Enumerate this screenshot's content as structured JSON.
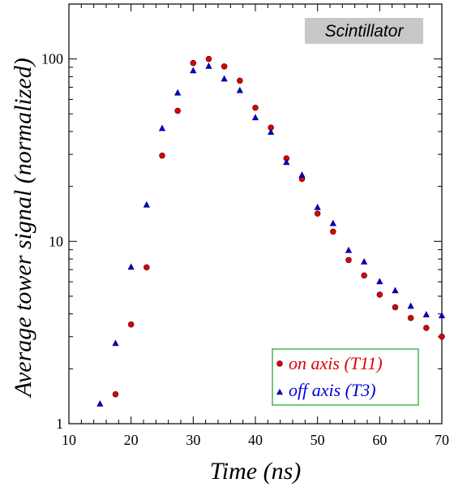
{
  "chart_data": {
    "type": "scatter",
    "title": "",
    "annotation": "Scintillator",
    "xlabel": "Time (ns)",
    "ylabel": "Average tower signal (normalized)",
    "xlim": [
      10,
      70
    ],
    "ylim": [
      1,
      200
    ],
    "yscale": "log",
    "xticks": [
      10,
      20,
      30,
      40,
      50,
      60,
      70
    ],
    "yticks": [
      1,
      10,
      100
    ],
    "ytick_labels": [
      "1",
      "10",
      "100"
    ],
    "legend_position": "bottom-right",
    "series": [
      {
        "name": "on axis (T11)",
        "color": "#e00000",
        "marker": "circle",
        "x": [
          17.5,
          20,
          22.5,
          25,
          27.5,
          30,
          32.5,
          35,
          37.5,
          40,
          42.5,
          45,
          47.5,
          50,
          52.5,
          55,
          57.5,
          60,
          62.5,
          65,
          67.5,
          70
        ],
        "y": [
          1.45,
          3.5,
          7.2,
          29.5,
          52,
          95,
          100,
          91,
          76,
          54,
          42,
          28.5,
          22,
          14.2,
          11.3,
          7.9,
          6.5,
          5.1,
          4.35,
          3.8,
          3.35,
          3.0
        ]
      },
      {
        "name": "off axis (T3)",
        "color": "#0000dd",
        "marker": "triangle",
        "x": [
          15,
          17.5,
          20,
          22.5,
          25,
          27.5,
          30,
          32.5,
          35,
          37.5,
          40,
          42.5,
          45,
          47.5,
          50,
          52.5,
          55,
          57.5,
          60,
          62.5,
          65,
          67.5,
          70
        ],
        "y": [
          1.28,
          2.75,
          7.2,
          15.8,
          41.5,
          65,
          86,
          91,
          77.5,
          67,
          47.5,
          39.5,
          27,
          23,
          15.3,
          12.5,
          8.9,
          7.7,
          6.0,
          5.35,
          4.4,
          3.95,
          3.9
        ]
      }
    ]
  }
}
